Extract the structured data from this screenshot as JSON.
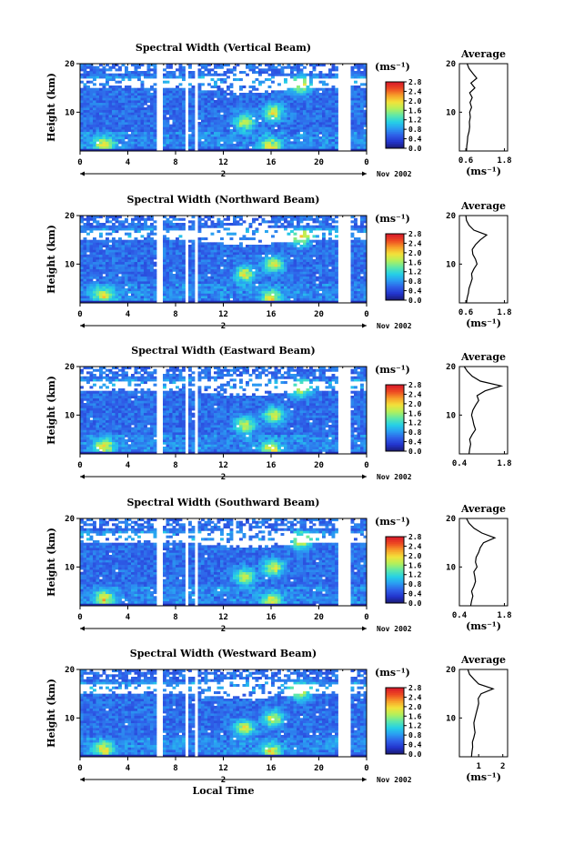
{
  "chart_data": [
    {
      "type": "heatmap",
      "title": "Spectral Width (Vertical Beam)",
      "xlabel": "",
      "ylabel": "Height (km)",
      "xlim": [
        0,
        24
      ],
      "ylim": [
        2,
        20
      ],
      "xticks": [
        "0",
        "4",
        "8",
        "12",
        "16",
        "20",
        "0"
      ],
      "yticks": [
        "10",
        "20"
      ],
      "date_label": "Nov 2002",
      "date_marker": "2",
      "colorbar": {
        "unit": "(ms⁻¹)",
        "ticks": [
          "0.0",
          "0.4",
          "0.8",
          "1.2",
          "1.6",
          "2.0",
          "2.4",
          "2.8"
        ],
        "range": [
          0,
          2.8
        ]
      },
      "gaps_hours": [
        [
          6.3,
          7.0
        ],
        [
          8.8,
          9.2
        ],
        [
          9.6,
          9.9
        ],
        [
          21.7,
          22.6
        ]
      ],
      "average_profile": {
        "title": "Average",
        "xlabel": "(ms⁻¹)",
        "xticks": [
          "0.6",
          "1.8"
        ],
        "xlim": [
          0.4,
          1.9
        ],
        "height": [
          2,
          3,
          4,
          5,
          6,
          7,
          8,
          9,
          10,
          11,
          12,
          13,
          14,
          15,
          16,
          17,
          18,
          19,
          20
        ],
        "value": [
          0.62,
          0.63,
          0.65,
          0.66,
          0.7,
          0.72,
          0.71,
          0.74,
          0.72,
          0.78,
          0.73,
          0.8,
          0.72,
          0.88,
          0.76,
          0.94,
          0.82,
          0.7,
          0.64
        ]
      }
    },
    {
      "type": "heatmap",
      "title": "Spectral Width (Northward Beam)",
      "xlabel": "",
      "ylabel": "Height (km)",
      "xlim": [
        0,
        24
      ],
      "ylim": [
        2,
        20
      ],
      "xticks": [
        "0",
        "4",
        "8",
        "12",
        "16",
        "20",
        "0"
      ],
      "yticks": [
        "10",
        "20"
      ],
      "date_label": "Nov 2002",
      "date_marker": "2",
      "colorbar": {
        "unit": "(ms⁻¹)",
        "ticks": [
          "0.0",
          "0.4",
          "0.8",
          "1.2",
          "1.6",
          "2.0",
          "2.4",
          "2.8"
        ],
        "range": [
          0,
          2.8
        ]
      },
      "gaps_hours": [
        [
          6.3,
          7.0
        ],
        [
          8.8,
          9.2
        ],
        [
          9.6,
          9.9
        ],
        [
          21.7,
          22.6
        ]
      ],
      "average_profile": {
        "title": "Average",
        "xlabel": "(ms⁻¹)",
        "xticks": [
          "0.6",
          "1.8"
        ],
        "xlim": [
          0.4,
          1.9
        ],
        "height": [
          2,
          3,
          4,
          5,
          6,
          7,
          8,
          9,
          10,
          11,
          12,
          13,
          14,
          15,
          16,
          17,
          18,
          19,
          20
        ],
        "value": [
          0.62,
          0.64,
          0.68,
          0.7,
          0.75,
          0.8,
          0.78,
          0.85,
          0.95,
          0.9,
          0.82,
          0.8,
          0.9,
          1.05,
          1.25,
          0.85,
          0.7,
          0.62,
          0.6
        ]
      }
    },
    {
      "type": "heatmap",
      "title": "Spectral Width (Eastward Beam)",
      "xlabel": "",
      "ylabel": "Height (km)",
      "xlim": [
        0,
        24
      ],
      "ylim": [
        2,
        20
      ],
      "xticks": [
        "0",
        "4",
        "8",
        "12",
        "16",
        "20",
        "0"
      ],
      "yticks": [
        "10",
        "20"
      ],
      "date_label": "Nov 2002",
      "date_marker": "2",
      "colorbar": {
        "unit": "(ms⁻¹)",
        "ticks": [
          "0.0",
          "0.4",
          "0.8",
          "1.2",
          "1.6",
          "2.0",
          "2.4",
          "2.8"
        ],
        "range": [
          0,
          2.8
        ]
      },
      "gaps_hours": [
        [
          6.3,
          7.0
        ],
        [
          8.8,
          9.2
        ],
        [
          9.6,
          9.9
        ],
        [
          21.7,
          22.6
        ]
      ],
      "average_profile": {
        "title": "Average",
        "xlabel": "",
        "xticks": [
          "0.4",
          "1.8"
        ],
        "xlim": [
          0.4,
          1.9
        ],
        "height": [
          2,
          3,
          4,
          5,
          6,
          7,
          8,
          9,
          10,
          11,
          12,
          13,
          14,
          15,
          16,
          17,
          18,
          19,
          20
        ],
        "value": [
          0.7,
          0.72,
          0.75,
          0.72,
          0.8,
          0.9,
          0.85,
          0.82,
          0.78,
          0.82,
          0.9,
          1.0,
          0.95,
          1.2,
          1.7,
          1.05,
          0.8,
          0.65,
          0.55
        ]
      }
    },
    {
      "type": "heatmap",
      "title": "Spectral Width (Southward Beam)",
      "xlabel": "",
      "ylabel": "Height (km)",
      "xlim": [
        0,
        24
      ],
      "ylim": [
        2,
        20
      ],
      "xticks": [
        "0",
        "4",
        "8",
        "12",
        "16",
        "20",
        "0"
      ],
      "yticks": [
        "10",
        "20"
      ],
      "date_label": "Nov 2002",
      "date_marker": "2",
      "colorbar": {
        "unit": "(ms⁻¹)",
        "ticks": [
          "0.0",
          "0.4",
          "0.8",
          "1.2",
          "1.6",
          "2.0",
          "2.4",
          "2.8"
        ],
        "range": [
          0,
          2.8
        ]
      },
      "gaps_hours": [
        [
          6.3,
          7.0
        ],
        [
          8.8,
          9.2
        ],
        [
          9.6,
          9.9
        ],
        [
          21.7,
          22.6
        ]
      ],
      "average_profile": {
        "title": "Average",
        "xlabel": "(ms⁻¹)",
        "xticks": [
          "0.4",
          "1.8"
        ],
        "xlim": [
          0.4,
          1.9
        ],
        "height": [
          2,
          3,
          4,
          5,
          6,
          7,
          8,
          9,
          10,
          11,
          12,
          13,
          14,
          15,
          16,
          17,
          18,
          19,
          20
        ],
        "value": [
          0.75,
          0.78,
          0.82,
          0.78,
          0.85,
          0.9,
          0.88,
          0.85,
          0.95,
          0.9,
          0.92,
          1.0,
          1.05,
          1.15,
          1.5,
          1.1,
          0.85,
          0.7,
          0.62
        ]
      }
    },
    {
      "type": "heatmap",
      "title": "Spectral Width (Westward Beam)",
      "xlabel": "Local Time",
      "ylabel": "Height (km)",
      "xlim": [
        0,
        24
      ],
      "ylim": [
        2,
        20
      ],
      "xticks": [
        "0",
        "4",
        "8",
        "12",
        "16",
        "20",
        "0"
      ],
      "yticks": [
        "10",
        "20"
      ],
      "date_label": "Nov 2002",
      "date_marker": "2",
      "colorbar": {
        "unit": "(ms⁻¹)",
        "ticks": [
          "0.0",
          "0.4",
          "0.8",
          "1.2",
          "1.6",
          "2.0",
          "2.4",
          "2.8"
        ],
        "range": [
          0,
          2.8
        ]
      },
      "gaps_hours": [
        [
          6.3,
          7.0
        ],
        [
          8.8,
          9.2
        ],
        [
          9.6,
          9.9
        ],
        [
          21.7,
          22.6
        ]
      ],
      "average_profile": {
        "title": "Average",
        "xlabel": "(ms⁻¹)",
        "xticks": [
          "1",
          "2"
        ],
        "xlim": [
          0.2,
          2.2
        ],
        "height": [
          2,
          3,
          4,
          5,
          6,
          7,
          8,
          9,
          10,
          11,
          12,
          13,
          14,
          15,
          16,
          17,
          18,
          19,
          20
        ],
        "value": [
          0.7,
          0.72,
          0.75,
          0.74,
          0.8,
          0.85,
          0.82,
          0.8,
          0.85,
          0.9,
          0.95,
          1.0,
          0.98,
          1.1,
          1.6,
          1.0,
          0.8,
          0.62,
          0.55
        ]
      }
    }
  ],
  "colormap": [
    "#1a1a6e",
    "#2233cc",
    "#2f5fe8",
    "#2a9cf2",
    "#25d0e6",
    "#5fe8a8",
    "#b4f05a",
    "#f3e23a",
    "#f7a02a",
    "#ee4a22",
    "#d81a2a"
  ],
  "colors": {
    "axis": "#000000",
    "gap": "#ffffff",
    "profile_line": "#000000"
  }
}
